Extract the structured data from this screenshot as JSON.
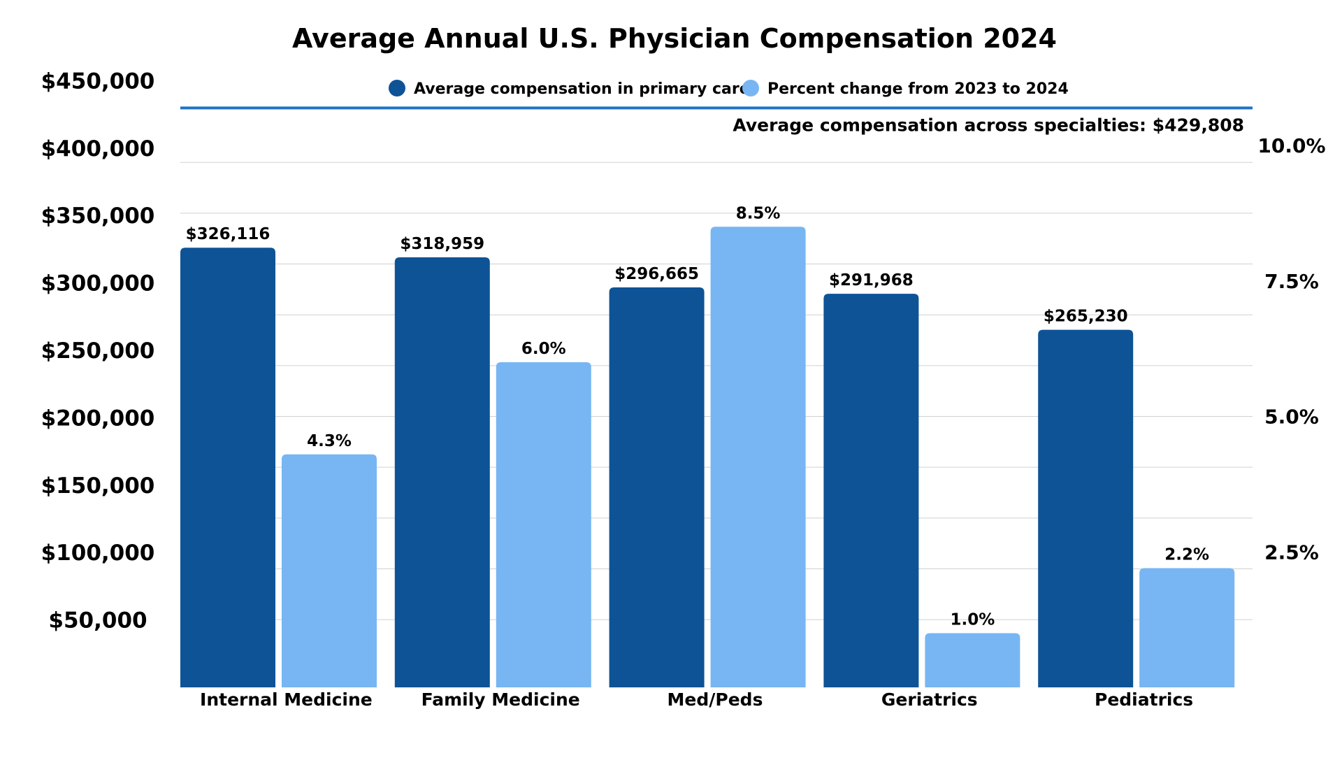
{
  "chart_data": {
    "type": "bar",
    "title": "Average Annual U.S. Physician Compensation 2024",
    "categories": [
      "Internal Medicine",
      "Family Medicine",
      "Med/Peds",
      "Geriatrics",
      "Pediatrics"
    ],
    "series": [
      {
        "name": "Average compensation in primary care",
        "axis": "left",
        "color": "#0e5396",
        "values": [
          326116,
          318959,
          296665,
          291968,
          265230
        ],
        "labels": [
          "$326,116",
          "$318,959",
          "$296,665",
          "$291,968",
          "$265,230"
        ]
      },
      {
        "name": "Percent change from 2023 to 2024",
        "axis": "right",
        "color": "#77b6f2",
        "values": [
          4.3,
          6.0,
          8.5,
          1.0,
          2.2
        ],
        "labels": [
          "4.3%",
          "6.0%",
          "8.5%",
          "1.0%",
          "2.2%"
        ]
      }
    ],
    "y_left": {
      "range": [
        0,
        450000
      ],
      "ticks": [
        50000,
        100000,
        150000,
        200000,
        250000,
        300000,
        350000,
        400000,
        450000
      ],
      "tick_labels": [
        "$50,000",
        "$100,000",
        "$150,000",
        "$200,000",
        "$250,000",
        "$300,000",
        "$350,000",
        "$400,000",
        "$450,000"
      ]
    },
    "y_right": {
      "range": [
        0,
        10
      ],
      "ticks": [
        2.5,
        5.0,
        7.5,
        10.0
      ],
      "tick_labels": [
        "2.5%",
        "5.0%",
        "7.5%",
        "10.0%"
      ]
    },
    "reference_line": {
      "value": 429808,
      "axis": "left",
      "color": "#1f72c7",
      "label": "Average compensation across specialties: $429,808"
    },
    "legend_position": "top-center",
    "grid": true
  }
}
